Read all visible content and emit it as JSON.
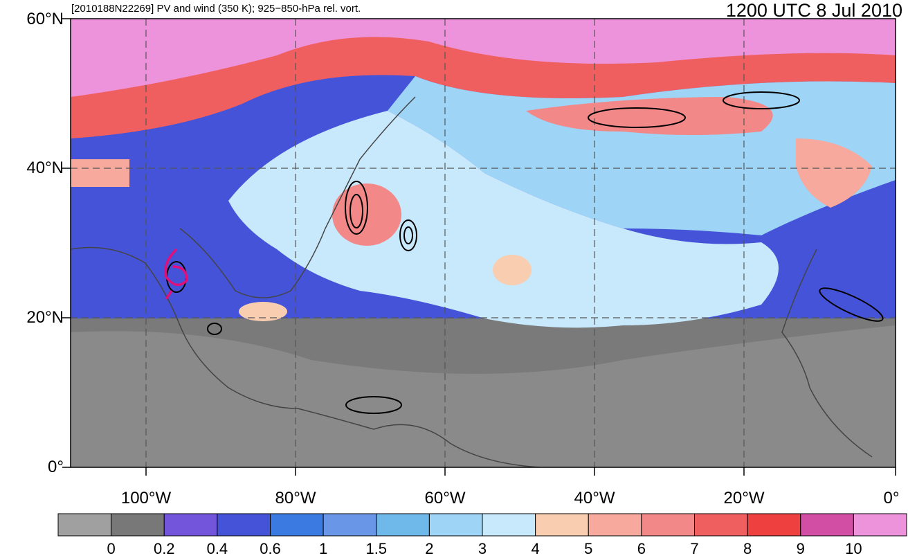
{
  "header": {
    "title": "[2010188N22269] PV and wind (350 K); 925−850-hPa rel. vort.",
    "datetime": "1200 UTC 8 Jul 2010"
  },
  "axes": {
    "lat_labels": [
      "60°N",
      "40°N",
      "20°N",
      "0°"
    ],
    "lon_labels": [
      "100°W",
      "80°W",
      "60°W",
      "40°W",
      "20°W",
      "0°"
    ]
  },
  "colorbar": {
    "colors": [
      "#a0a0a0",
      "#787878",
      "#7355db",
      "#4553d8",
      "#3b7ae0",
      "#6a96e8",
      "#6fb9ea",
      "#9ed4f6",
      "#c8e8fb",
      "#f9cdb0",
      "#f6a99c",
      "#f28888",
      "#f05f5f",
      "#ef4040",
      "#d24ea5",
      "#ed93dc"
    ],
    "labels": [
      "0",
      "0.2",
      "0.4",
      "0.6",
      "1",
      "1.5",
      "2",
      "3",
      "4",
      "5",
      "6",
      "7",
      "8",
      "9",
      "10"
    ]
  },
  "track": {
    "color": "#e0107a"
  }
}
